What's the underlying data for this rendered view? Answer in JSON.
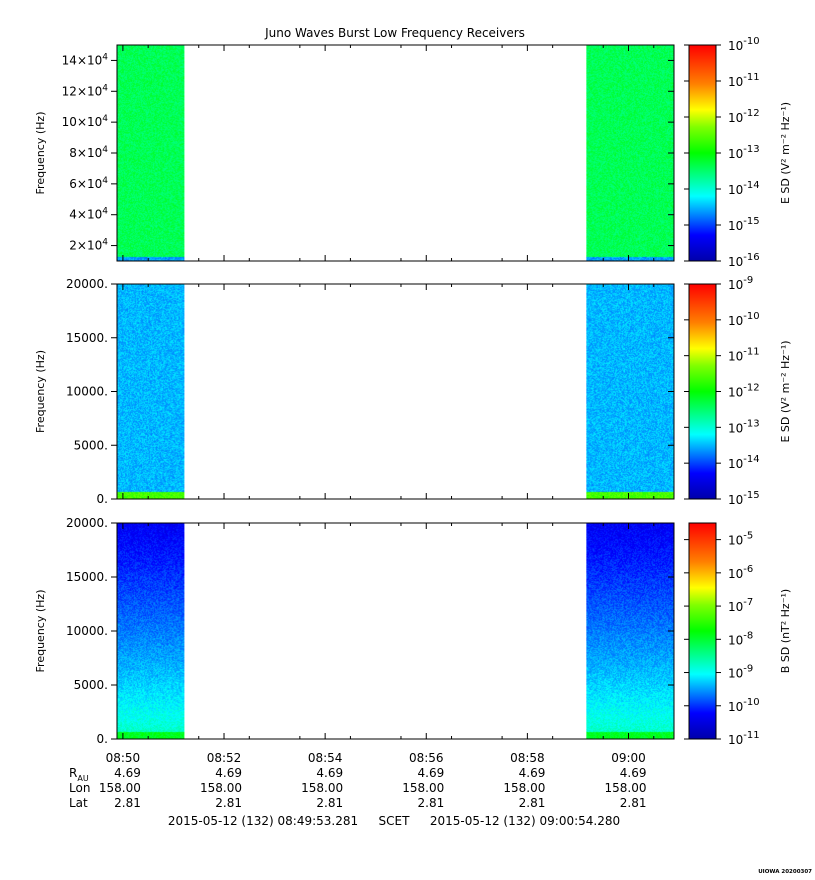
{
  "title": "Juno Waves Burst Low Frequency Receivers",
  "footer": {
    "start_time": "2015-05-12 (132) 08:49:53.281",
    "scet": "SCET",
    "end_time": "2015-05-12 (132) 09:00:54.280",
    "credit": "UIOWA 20200307"
  },
  "chart_data": [
    {
      "type": "heatmap",
      "panel": "top",
      "ylabel": "Frequency (Hz)",
      "ylim": [
        10000,
        150000
      ],
      "yticks": [
        20000,
        40000,
        60000,
        80000,
        100000,
        120000,
        140000
      ],
      "ytick_labels": [
        {
          "base": "2×10",
          "exp": "4"
        },
        {
          "base": "4×10",
          "exp": "4"
        },
        {
          "base": "6×10",
          "exp": "4"
        },
        {
          "base": "8×10",
          "exp": "4"
        },
        {
          "base": "10×10",
          "exp": "4"
        },
        {
          "base": "12×10",
          "exp": "4"
        },
        {
          "base": "14×10",
          "exp": "4"
        }
      ],
      "colorbar_label": "E SD (V² m⁻² Hz⁻¹)",
      "colorbar_exps": [
        "-10",
        "-11",
        "-12",
        "-13",
        "-14",
        "-15",
        "-16"
      ],
      "colorbar_log_range": [
        -16,
        -10
      ],
      "data_blocks": [
        {
          "start": "08:49:53",
          "end": "08:51:13",
          "level": -13.4,
          "low_band_level": -14.6
        },
        {
          "start": "08:59:10",
          "end": "09:00:54",
          "level": -13.4,
          "low_band_level": -14.6
        }
      ]
    },
    {
      "type": "heatmap",
      "panel": "middle",
      "ylabel": "Frequency (Hz)",
      "ylim": [
        0,
        20000
      ],
      "yticks": [
        0,
        5000,
        10000,
        15000,
        20000
      ],
      "ytick_labels": [
        "0.",
        "5000.",
        "10000.",
        "15000.",
        "20000."
      ],
      "colorbar_label": "E SD (V² m⁻² Hz⁻¹)",
      "colorbar_exps": [
        "-9",
        "-10",
        "-11",
        "-12",
        "-13",
        "-14",
        "-15"
      ],
      "colorbar_log_range": [
        -15,
        -9
      ],
      "data_blocks": [
        {
          "start": "08:49:53",
          "end": "08:51:13",
          "level": -13.5,
          "low_band_level": -11.6
        },
        {
          "start": "08:59:10",
          "end": "09:00:54",
          "level": -13.5,
          "low_band_level": -11.6
        }
      ]
    },
    {
      "type": "heatmap",
      "panel": "bottom",
      "ylabel": "Frequency (Hz)",
      "ylim": [
        0,
        20000
      ],
      "yticks": [
        0,
        5000,
        10000,
        15000,
        20000
      ],
      "ytick_labels": [
        "0.",
        "5000.",
        "10000.",
        "15000.",
        "20000."
      ],
      "colorbar_label": "B SD (nT² Hz⁻¹)",
      "colorbar_exps": [
        "-5",
        "-6",
        "-7",
        "-8",
        "-9",
        "-10",
        "-11"
      ],
      "colorbar_log_range": [
        -11,
        -4.5
      ],
      "data_blocks": [
        {
          "start": "08:49:53",
          "end": "08:51:13",
          "level_top": -10.3,
          "level_bottom": -8.6,
          "low_band_level": -7.9
        },
        {
          "start": "08:59:10",
          "end": "09:00:54",
          "level_top": -10.3,
          "level_bottom": -8.6,
          "low_band_level": -7.9
        }
      ]
    }
  ],
  "x_axis": {
    "start": "08:49:53",
    "end": "09:00:54",
    "ticks": [
      "08:50",
      "08:52",
      "08:54",
      "08:56",
      "08:58",
      "09:00"
    ]
  },
  "ephemeris": {
    "rows": [
      {
        "label": "R",
        "sub": "AU",
        "values": [
          "4.69",
          "4.69",
          "4.69",
          "4.69",
          "4.69",
          "4.69"
        ]
      },
      {
        "label": "Lon",
        "values": [
          "158.00",
          "158.00",
          "158.00",
          "158.00",
          "158.00",
          "158.00"
        ]
      },
      {
        "label": "Lat",
        "values": [
          "2.81",
          "2.81",
          "2.81",
          "2.81",
          "2.81",
          "2.81"
        ]
      }
    ]
  }
}
